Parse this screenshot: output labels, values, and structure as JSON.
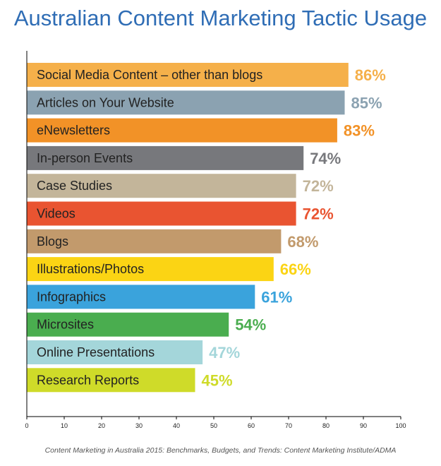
{
  "chart_data": {
    "type": "bar",
    "orientation": "horizontal",
    "title": "Australian Content Marketing Tactic Usage",
    "categories": [
      "Social Media Content – other than blogs",
      "Articles on Your Website",
      "eNewsletters",
      "In-person Events",
      "Case Studies",
      "Videos",
      "Blogs",
      "Illustrations/Photos",
      "Infographics",
      "Microsites",
      "Online Presentations",
      "Research Reports"
    ],
    "values": [
      86,
      85,
      83,
      74,
      72,
      72,
      68,
      66,
      61,
      54,
      47,
      45
    ],
    "value_labels": [
      "86%",
      "85%",
      "83%",
      "74%",
      "72%",
      "72%",
      "68%",
      "66%",
      "61%",
      "54%",
      "47%",
      "45%"
    ],
    "colors": [
      "#f5b04a",
      "#8ba2b1",
      "#f29227",
      "#77787c",
      "#c3b59a",
      "#e95431",
      "#c29a6c",
      "#fbd414",
      "#3aa3dc",
      "#4aad4f",
      "#a4d6da",
      "#cfdb29"
    ],
    "xlim": [
      0,
      100
    ],
    "xticks": [
      0,
      10,
      20,
      30,
      40,
      50,
      60,
      70,
      80,
      90,
      100
    ],
    "grid": false,
    "legend": "none"
  },
  "source": "Content Marketing in Australia 2015: Benchmarks, Budgets, and Trends: Content Marketing Institute/ADMA"
}
